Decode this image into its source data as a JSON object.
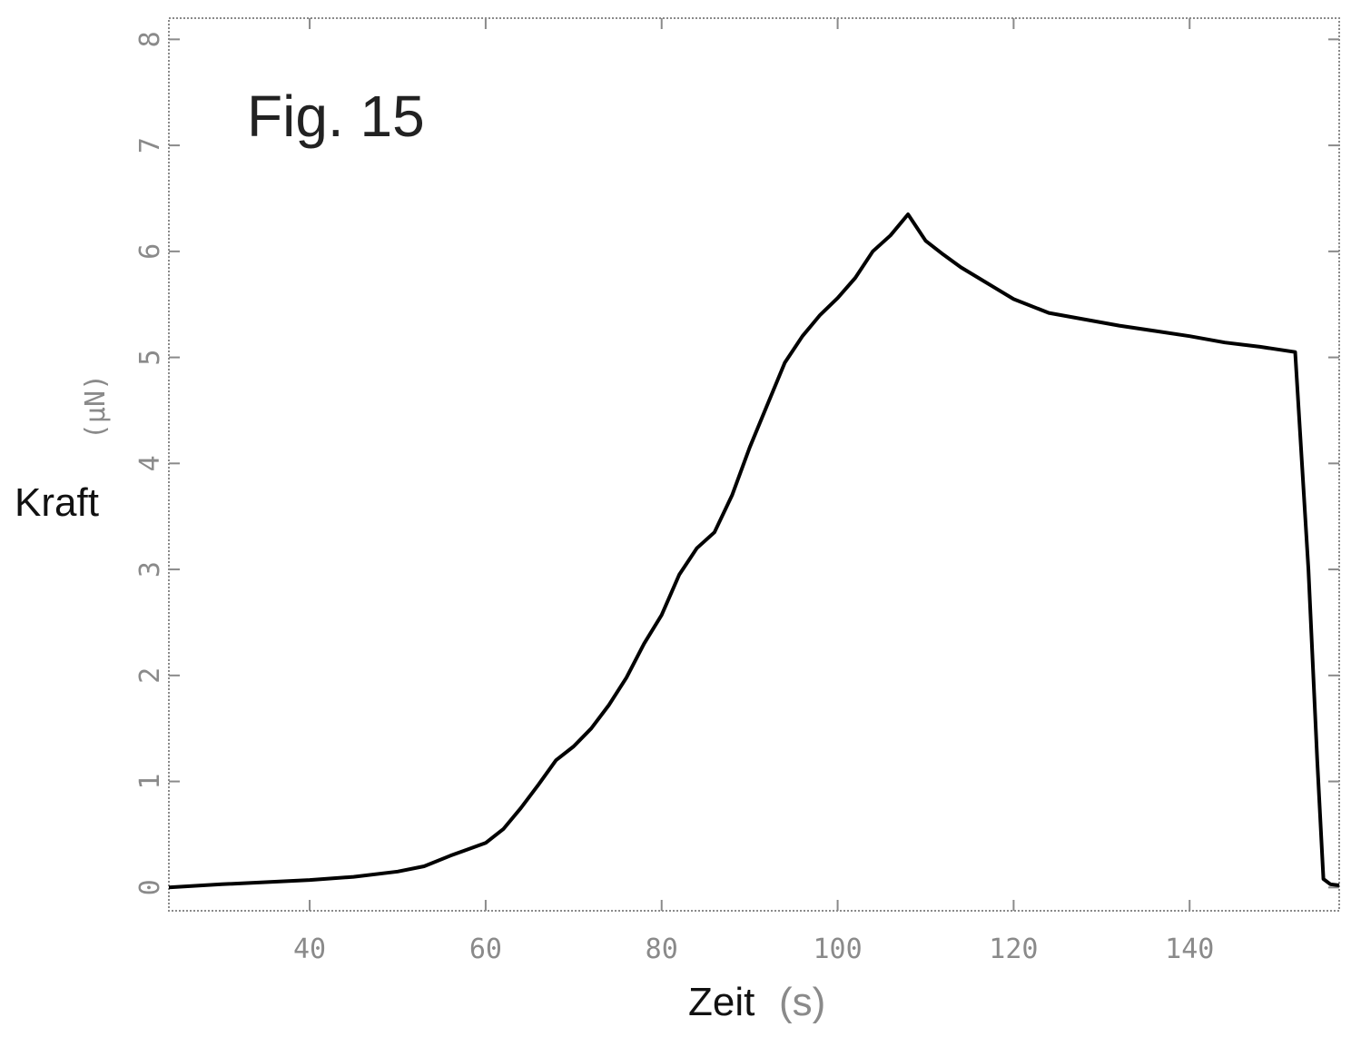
{
  "figure_label": "Fig. 15",
  "chart_data": {
    "type": "line",
    "xlabel_main": "Zeit",
    "xlabel_unit": "(s)",
    "ylabel_main": "Kraft",
    "ylabel_unit": "(μN)",
    "xlim": [
      24,
      157
    ],
    "ylim": [
      -0.22,
      8.2
    ],
    "x_ticks": [
      {
        "value": 40,
        "label": "40"
      },
      {
        "value": 60,
        "label": "60"
      },
      {
        "value": 80,
        "label": "80"
      },
      {
        "value": 100,
        "label": "100"
      },
      {
        "value": 120,
        "label": "120"
      },
      {
        "value": 140,
        "label": "140"
      }
    ],
    "y_ticks": [
      {
        "value": 0,
        "label": "0"
      },
      {
        "value": 1,
        "label": "1"
      },
      {
        "value": 2,
        "label": "2"
      },
      {
        "value": 3,
        "label": "3"
      },
      {
        "value": 4,
        "label": "4"
      },
      {
        "value": 5,
        "label": "5"
      },
      {
        "value": 6,
        "label": "6"
      },
      {
        "value": 7,
        "label": "7"
      },
      {
        "value": 8,
        "label": "8"
      }
    ],
    "series": [
      {
        "color": "#000000",
        "points": [
          [
            24,
            0.0
          ],
          [
            30,
            0.03
          ],
          [
            40,
            0.07
          ],
          [
            45,
            0.1
          ],
          [
            50,
            0.15
          ],
          [
            53,
            0.2
          ],
          [
            56,
            0.3
          ],
          [
            60,
            0.42
          ],
          [
            62,
            0.55
          ],
          [
            64,
            0.75
          ],
          [
            66,
            0.97
          ],
          [
            68,
            1.2
          ],
          [
            70,
            1.33
          ],
          [
            72,
            1.5
          ],
          [
            74,
            1.72
          ],
          [
            76,
            1.98
          ],
          [
            78,
            2.3
          ],
          [
            80,
            2.57
          ],
          [
            82,
            2.95
          ],
          [
            84,
            3.2
          ],
          [
            86,
            3.35
          ],
          [
            88,
            3.7
          ],
          [
            90,
            4.15
          ],
          [
            92,
            4.55
          ],
          [
            94,
            4.95
          ],
          [
            96,
            5.2
          ],
          [
            98,
            5.4
          ],
          [
            100,
            5.56
          ],
          [
            102,
            5.75
          ],
          [
            104,
            6.0
          ],
          [
            106,
            6.15
          ],
          [
            107,
            6.25
          ],
          [
            108,
            6.35
          ],
          [
            110,
            6.1
          ],
          [
            112,
            5.97
          ],
          [
            114,
            5.85
          ],
          [
            116,
            5.75
          ],
          [
            118,
            5.65
          ],
          [
            120,
            5.55
          ],
          [
            124,
            5.42
          ],
          [
            128,
            5.36
          ],
          [
            132,
            5.3
          ],
          [
            136,
            5.25
          ],
          [
            140,
            5.2
          ],
          [
            144,
            5.14
          ],
          [
            148,
            5.1
          ],
          [
            152,
            5.05
          ],
          [
            153.5,
            3.0
          ],
          [
            154.5,
            1.2
          ],
          [
            155.2,
            0.08
          ],
          [
            156,
            0.03
          ],
          [
            157,
            0.02
          ]
        ]
      }
    ]
  }
}
